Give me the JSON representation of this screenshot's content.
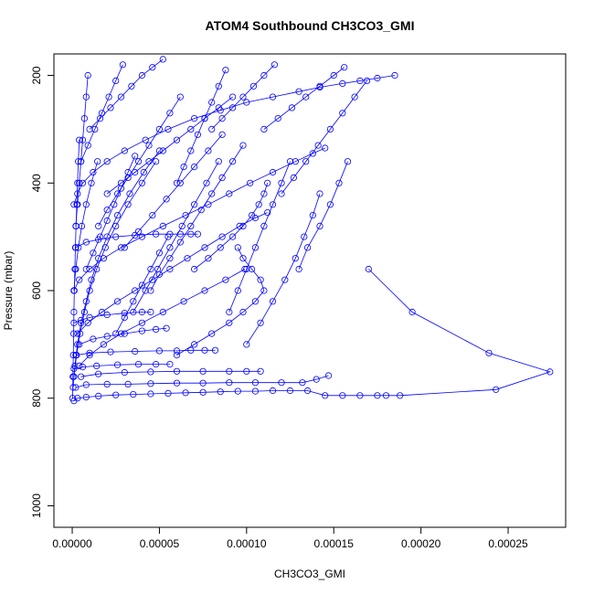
{
  "chart_data": {
    "type": "scatter",
    "title": "ATOM4 Southbound CH3CO3_GMI",
    "xlabel": "CH3CO3_GMI",
    "ylabel": "Pressure (mbar)",
    "xlim": [
      -1.05e-05,
      0.000283
    ],
    "ylim": [
      1040,
      160
    ],
    "y_reversed": true,
    "x_ticks": [
      0,
      5e-05,
      0.0001,
      0.00015,
      0.0002,
      0.00025
    ],
    "x_tick_labels": [
      "0.00000",
      "0.00005",
      "0.00010",
      "0.00015",
      "0.00020",
      "0.00025"
    ],
    "y_ticks": [
      200,
      400,
      600,
      800,
      1000
    ],
    "y_tick_labels": [
      "200",
      "400",
      "600",
      "800",
      "1000"
    ],
    "marker": "open-circle",
    "color": "#0000ff",
    "series": [
      {
        "x": [
          1e-06,
          3e-06,
          8e-06,
          1.5e-05,
          2.5e-05,
          3.5e-05,
          4.5e-05,
          5.5e-05,
          6.5e-05,
          7.5e-05,
          8.5e-05,
          9.5e-05,
          0.000105,
          0.000115,
          0.000125,
          0.000135,
          0.000145,
          0.000155,
          0.000165,
          0.000175,
          0.00018,
          0.000188,
          0.000243,
          0.000274,
          0.000239,
          0.000195,
          0.00017
        ],
        "y": [
          805,
          800,
          798,
          796,
          794,
          793,
          792,
          791,
          790,
          789,
          788,
          787,
          787,
          786,
          786,
          786,
          795,
          795,
          795,
          795,
          795,
          795,
          784,
          751,
          716,
          640,
          560
        ]
      },
      {
        "x": [
          2e-06,
          8e-06,
          2e-05,
          3.2e-05,
          4.5e-05,
          6e-05,
          7.5e-05,
          9e-05,
          0.000105,
          0.00012,
          0.000132,
          0.00014,
          0.000147
        ],
        "y": [
          780,
          775,
          774,
          774,
          773,
          772,
          772,
          771,
          771,
          771,
          771,
          765,
          758
        ]
      },
      {
        "x": [
          5e-06,
          1.5e-05,
          3e-05,
          4.5e-05,
          6e-05,
          7.5e-05,
          9e-05,
          0.0001,
          0.000108
        ],
        "y": [
          760,
          755,
          752,
          751,
          750,
          750,
          750,
          750,
          750
        ]
      },
      {
        "x": [
          1e-06,
          6e-06,
          1.4e-05,
          2.6e-05,
          3.8e-05,
          4.8e-05,
          5.6e-05
        ],
        "y": [
          745,
          742,
          740,
          738,
          737,
          737,
          737
        ]
      },
      {
        "x": [
          2e-06,
          1e-05,
          2.2e-05,
          3.6e-05,
          5e-05,
          6e-05,
          6.8e-05,
          7.6e-05,
          8.2e-05
        ],
        "y": [
          720,
          716,
          714,
          713,
          712,
          712,
          711,
          711,
          711
        ]
      },
      {
        "x": [
          4e-06,
          1.2e-05,
          2e-05,
          3e-05,
          4e-05,
          4.8e-05,
          5.4e-05
        ],
        "y": [
          700,
          690,
          685,
          680,
          675,
          672,
          670
        ]
      },
      {
        "x": [
          1e-06,
          5e-06,
          1e-05,
          2e-05,
          3e-05,
          4e-05,
          4.5e-05
        ],
        "y": [
          660,
          655,
          650,
          645,
          642,
          640,
          640
        ]
      },
      {
        "x": [
          2e-06,
          8e-06,
          1.5e-05,
          2.5e-05,
          3.6e-05,
          4.8e-05,
          5.6e-05,
          6.2e-05,
          6.8e-05,
          7.2e-05
        ],
        "y": [
          520,
          510,
          505,
          500,
          497,
          495,
          495,
          495,
          495,
          495
        ]
      },
      {
        "x": [
          1e-06,
          3e-06,
          6e-06,
          1.2e-05,
          2e-05,
          3e-05,
          4.2e-05,
          5.5e-05,
          7e-05,
          8.5e-05,
          0.0001,
          0.000115,
          0.00013,
          0.000142,
          0.000155,
          0.000165,
          0.000175,
          0.000185
        ],
        "y": [
          440,
          420,
          400,
          380,
          360,
          340,
          320,
          300,
          280,
          265,
          250,
          240,
          230,
          222,
          215,
          210,
          205,
          200
        ]
      },
      {
        "x": [
          1e-06,
          4e-06,
          1e-05,
          1.8e-05,
          2.8e-05,
          4e-05,
          5.2e-05,
          6.5e-05,
          7.8e-05,
          9e-05,
          0.000102,
          0.000115,
          0.000128,
          0.000138,
          0.000145
        ],
        "y": [
          600,
          580,
          560,
          540,
          520,
          500,
          480,
          460,
          440,
          420,
          400,
          380,
          360,
          345,
          335
        ]
      },
      {
        "x": [
          3e-06,
          9e-06,
          1.7e-05,
          2.6e-05,
          3.6e-05,
          4.6e-05,
          5.6e-05,
          6.6e-05,
          7.6e-05,
          8.6e-05,
          9.6e-05,
          0.000105,
          0.000112
        ],
        "y": [
          680,
          660,
          640,
          620,
          600,
          580,
          560,
          540,
          520,
          500,
          480,
          465,
          455
        ]
      },
      {
        "x": [
          5e-07,
          1.5e-06,
          3e-06,
          5e-06,
          8e-06,
          1.1e-05,
          1.5e-05,
          2e-05,
          2.6e-05,
          3.3e-05,
          4.1e-05,
          5e-05
        ],
        "y": [
          780,
          740,
          700,
          660,
          620,
          580,
          540,
          500,
          460,
          420,
          380,
          340
        ]
      },
      {
        "x": [
          1e-06,
          2.5e-06,
          4.5e-06,
          7e-06,
          1e-05,
          1.4e-05,
          1.9e-05,
          2.5e-05,
          3.2e-05,
          4e-05,
          4.8e-05
        ],
        "y": [
          760,
          720,
          680,
          640,
          600,
          560,
          520,
          480,
          440,
          400,
          360
        ]
      },
      {
        "x": [
          2e-07,
          4e-07,
          6e-07,
          8e-07,
          1e-06,
          1.2e-06,
          1.5e-06,
          1.8e-06,
          2.2e-06,
          2.6e-06,
          3e-06,
          3.5e-06,
          4e-06
        ],
        "y": [
          800,
          760,
          720,
          680,
          640,
          600,
          560,
          520,
          480,
          440,
          400,
          360,
          320
        ]
      },
      {
        "x": [
          4e-06,
          1e-05,
          1.8e-05,
          2.8e-05,
          4e-05,
          5.2e-05,
          6.4e-05,
          7.6e-05,
          8.8e-05,
          9.9e-05
        ],
        "y": [
          740,
          720,
          700,
          680,
          660,
          640,
          620,
          600,
          580,
          560
        ]
      },
      {
        "x": [
          6e-05,
          7e-05,
          8e-05,
          9e-05,
          9.8e-05,
          0.000105,
          0.00011,
          0.000108,
          0.000103,
          9.8e-05,
          9.5e-05
        ],
        "y": [
          720,
          700,
          680,
          660,
          640,
          620,
          600,
          580,
          560,
          540,
          520
        ]
      },
      {
        "x": [
          7e-05,
          7.8e-05,
          8.5e-05,
          9.2e-05,
          9.8e-05,
          0.000103,
          0.000107,
          0.00011,
          0.000112
        ],
        "y": [
          560,
          540,
          520,
          500,
          480,
          460,
          440,
          420,
          400
        ]
      },
      {
        "x": [
          9e-05,
          9.5e-05,
          0.0001,
          0.000105,
          0.00011,
          0.000115,
          0.00012,
          0.000125
        ],
        "y": [
          640,
          600,
          560,
          520,
          480,
          440,
          400,
          360
        ]
      },
      {
        "x": [
          0.0001,
          0.000108,
          0.000115,
          0.000122,
          0.000128,
          0.000133,
          0.000138,
          0.000142
        ],
        "y": [
          700,
          660,
          620,
          580,
          540,
          500,
          460,
          420
        ]
      },
      {
        "x": [
          2e-05,
          2.8e-05,
          3.6e-05,
          4.4e-05,
          5.2e-05,
          6e-05,
          6.8e-05,
          7.6e-05,
          8.4e-05,
          9.2e-05
        ],
        "y": [
          420,
          400,
          380,
          360,
          340,
          320,
          300,
          280,
          260,
          240
        ]
      },
      {
        "x": [
          3e-05,
          3.8e-05,
          4.6e-05,
          5.4e-05,
          6.2e-05,
          7e-05,
          7.8e-05,
          8.6e-05
        ],
        "y": [
          520,
          490,
          460,
          430,
          400,
          370,
          340,
          310
        ]
      },
      {
        "x": [
          4.5e-05,
          5e-05,
          5.6e-05,
          6.2e-05,
          6.8e-05,
          7.4e-05,
          8e-05,
          8.6e-05,
          9.2e-05,
          9.8e-05
        ],
        "y": [
          600,
          570,
          540,
          510,
          480,
          450,
          420,
          390,
          360,
          330
        ]
      },
      {
        "x": [
          1e-05,
          1.6e-05,
          2.2e-05,
          2.8e-05,
          3.4e-05,
          4e-05,
          4.6e-05,
          5.2e-05
        ],
        "y": [
          300,
          280,
          260,
          240,
          220,
          200,
          185,
          170
        ]
      },
      {
        "x": [
          5e-06,
          9e-06,
          1.3e-05,
          1.7e-05,
          2.1e-05,
          2.5e-05,
          2.9e-05
        ],
        "y": [
          360,
          330,
          300,
          270,
          240,
          210,
          180
        ]
      },
      {
        "x": [
          1.5e-05,
          2e-05,
          2.6e-05,
          3.2e-05,
          3.8e-05,
          4.4e-05,
          5e-05,
          5.6e-05,
          6.2e-05
        ],
        "y": [
          480,
          450,
          420,
          390,
          360,
          330,
          300,
          270,
          240
        ]
      },
      {
        "x": [
          3.5e-05,
          4.2e-05,
          4.9e-05,
          5.6e-05,
          6.3e-05,
          7e-05,
          7.7e-05,
          8.4e-05
        ],
        "y": [
          640,
          600,
          560,
          520,
          480,
          440,
          400,
          360
        ]
      },
      {
        "x": [
          0.00011,
          0.000118,
          0.000126,
          0.000134,
          0.000142,
          0.00015,
          0.000156
        ],
        "y": [
          300,
          280,
          260,
          240,
          220,
          200,
          185
        ]
      },
      {
        "x": [
          8e-05,
          8.6e-05,
          9.2e-05,
          9.8e-05,
          0.000104,
          0.00011,
          0.000116
        ],
        "y": [
          300,
          280,
          260,
          240,
          220,
          200,
          180
        ]
      },
      {
        "x": [
          0.00012,
          0.000127,
          0.000134,
          0.000141,
          0.000148,
          0.000155,
          0.000162,
          0.000169
        ],
        "y": [
          420,
          390,
          360,
          330,
          300,
          270,
          240,
          210
        ]
      },
      {
        "x": [
          6e-05,
          6.4e-05,
          6.8e-05,
          7.2e-05,
          7.6e-05,
          8e-05,
          8.4e-05,
          8.8e-05
        ],
        "y": [
          400,
          370,
          340,
          310,
          280,
          250,
          220,
          190
        ]
      },
      {
        "x": [
          0.00013,
          0.000135,
          0.000142,
          0.000148,
          0.000153,
          0.000158
        ],
        "y": [
          560,
          520,
          480,
          440,
          400,
          360
        ]
      },
      {
        "x": [
          2.5e-05,
          3e-05,
          3.5e-05,
          4e-05,
          4.5e-05,
          5e-05,
          5.5e-05
        ],
        "y": [
          680,
          650,
          620,
          590,
          560,
          530,
          500
        ]
      },
      {
        "x": [
          8e-06,
          1.2e-05,
          1.6e-05,
          2e-05,
          2.4e-05,
          2.8e-05,
          3.2e-05,
          3.6e-05
        ],
        "y": [
          560,
          530,
          500,
          470,
          440,
          410,
          380,
          350
        ]
      },
      {
        "x": [
          1e-06,
          2e-06,
          3.5e-06,
          5.5e-06,
          8e-06,
          1.1e-05,
          1.45e-05
        ],
        "y": [
          600,
          560,
          520,
          480,
          440,
          400,
          360
        ]
      },
      {
        "x": [
          2e-06,
          3e-06,
          4e-06,
          5e-06,
          6e-06,
          7e-06,
          8e-06,
          9e-06
        ],
        "y": [
          480,
          440,
          400,
          360,
          320,
          280,
          240,
          200
        ]
      }
    ]
  }
}
